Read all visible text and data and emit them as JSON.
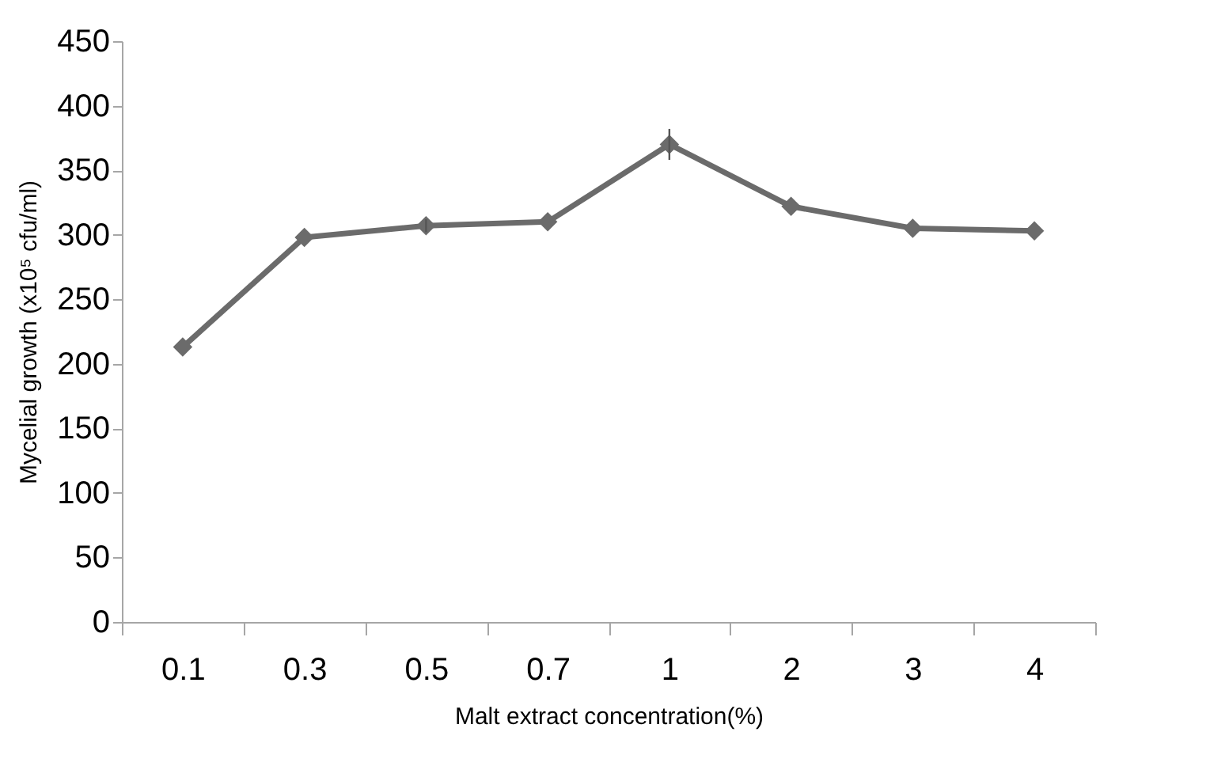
{
  "chart_data": {
    "type": "line",
    "xlabel": "Malt extract concentration(%)",
    "ylabel": "Mycelial growth  (x10⁵ cfu/ml)",
    "categories": [
      "0.1",
      "0.3",
      "0.5",
      "0.7",
      "1",
      "2",
      "3",
      "4"
    ],
    "series": [
      {
        "color": "#6b6b6b",
        "values": [
          213,
          298,
          307,
          310,
          370,
          322,
          305,
          303
        ],
        "errors": [
          null,
          null,
          5,
          null,
          12,
          null,
          null,
          null
        ]
      }
    ],
    "ylim": [
      0,
      450
    ],
    "yticks": [
      0,
      50,
      100,
      150,
      200,
      250,
      300,
      350,
      400,
      450
    ],
    "grid": false,
    "marker": "diamond",
    "line_style": "solid"
  }
}
